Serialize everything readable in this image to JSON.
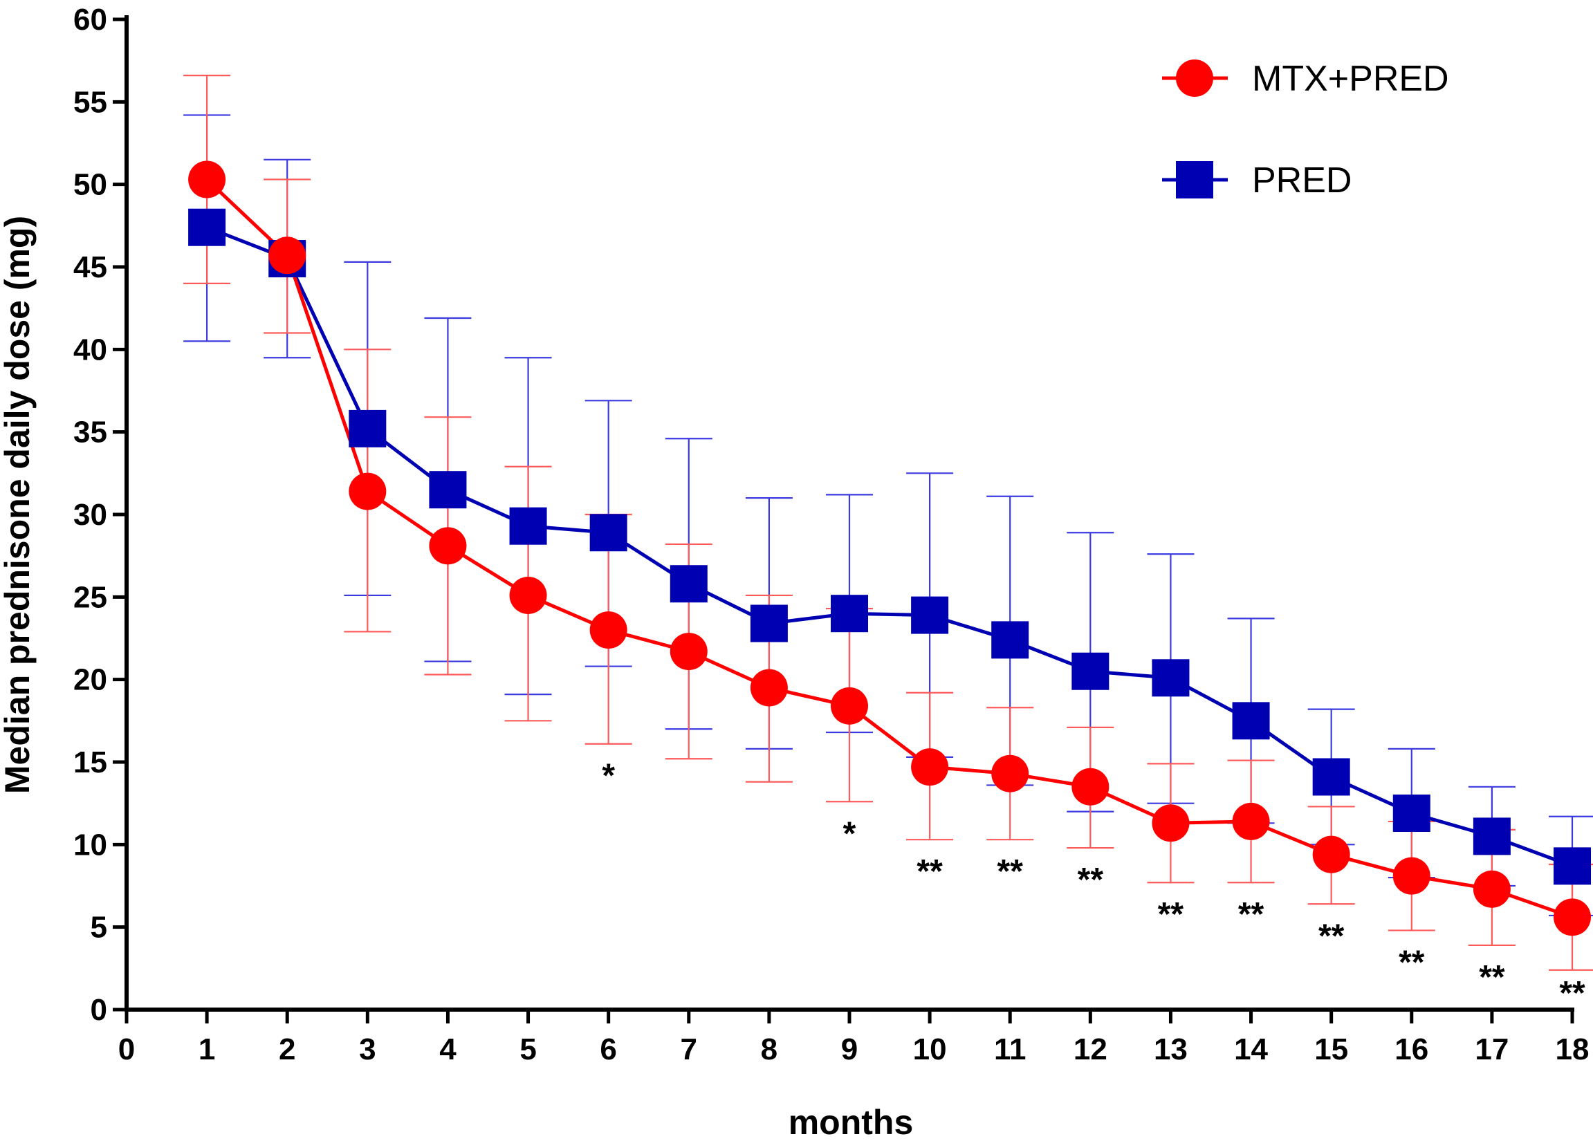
{
  "chart_data": {
    "type": "line",
    "title": "",
    "xlabel": "months",
    "ylabel": "Median prednisone daily dose (mg)",
    "xlim": [
      0,
      18
    ],
    "ylim": [
      0,
      60
    ],
    "x_ticks": [
      "0",
      "1",
      "2",
      "3",
      "4",
      "5",
      "6",
      "7",
      "8",
      "9",
      "10",
      "11",
      "12",
      "13",
      "14",
      "15",
      "16",
      "17",
      "18"
    ],
    "y_ticks": [
      "0",
      "5",
      "10",
      "15",
      "20",
      "25",
      "30",
      "35",
      "40",
      "45",
      "50",
      "55",
      "60"
    ],
    "grid": false,
    "legend_position": "top-right",
    "x": [
      1,
      2,
      3,
      4,
      5,
      6,
      7,
      8,
      9,
      10,
      11,
      12,
      13,
      14,
      15,
      16,
      17,
      18
    ],
    "series": [
      {
        "name": "MTX+PRED",
        "color": "#ff0000",
        "marker": "circle",
        "values": [
          50.3,
          45.7,
          31.4,
          28.1,
          25.1,
          23.0,
          21.7,
          19.5,
          18.4,
          14.7,
          14.3,
          13.5,
          11.3,
          11.4,
          9.4,
          8.1,
          7.3,
          5.6
        ],
        "err_high": [
          56.6,
          50.3,
          40.0,
          35.9,
          32.9,
          30.0,
          28.2,
          25.1,
          24.3,
          19.2,
          18.3,
          17.1,
          14.9,
          15.1,
          12.3,
          11.4,
          10.9,
          8.8
        ],
        "err_low": [
          44.0,
          41.0,
          22.9,
          20.3,
          17.5,
          16.1,
          15.2,
          13.8,
          12.6,
          10.3,
          10.3,
          9.8,
          7.7,
          7.7,
          6.4,
          4.8,
          3.9,
          2.4
        ]
      },
      {
        "name": "PRED",
        "color": "#0000b3",
        "marker": "square",
        "values": [
          47.4,
          45.5,
          35.2,
          31.5,
          29.3,
          28.9,
          25.8,
          23.4,
          24.0,
          23.9,
          22.4,
          20.5,
          20.1,
          17.5,
          14.1,
          11.9,
          10.5,
          8.7
        ],
        "err_high": [
          54.2,
          51.5,
          45.3,
          41.9,
          39.5,
          36.9,
          34.6,
          31.0,
          31.2,
          32.5,
          31.1,
          28.9,
          27.6,
          23.7,
          18.2,
          15.8,
          13.5,
          11.7
        ],
        "err_low": [
          40.5,
          39.5,
          25.1,
          21.1,
          19.1,
          20.8,
          17.0,
          15.8,
          16.8,
          15.3,
          13.6,
          12.0,
          12.5,
          11.3,
          10.0,
          8.0,
          7.5,
          5.7
        ]
      }
    ],
    "annotations": [
      {
        "x": 6,
        "text": "*"
      },
      {
        "x": 9,
        "text": "*"
      },
      {
        "x": 10,
        "text": "**"
      },
      {
        "x": 11,
        "text": "**"
      },
      {
        "x": 12,
        "text": "**"
      },
      {
        "x": 13,
        "text": "**"
      },
      {
        "x": 14,
        "text": "**"
      },
      {
        "x": 15,
        "text": "**"
      },
      {
        "x": 16,
        "text": "**"
      },
      {
        "x": 17,
        "text": "**"
      },
      {
        "x": 18,
        "text": "**"
      }
    ]
  }
}
